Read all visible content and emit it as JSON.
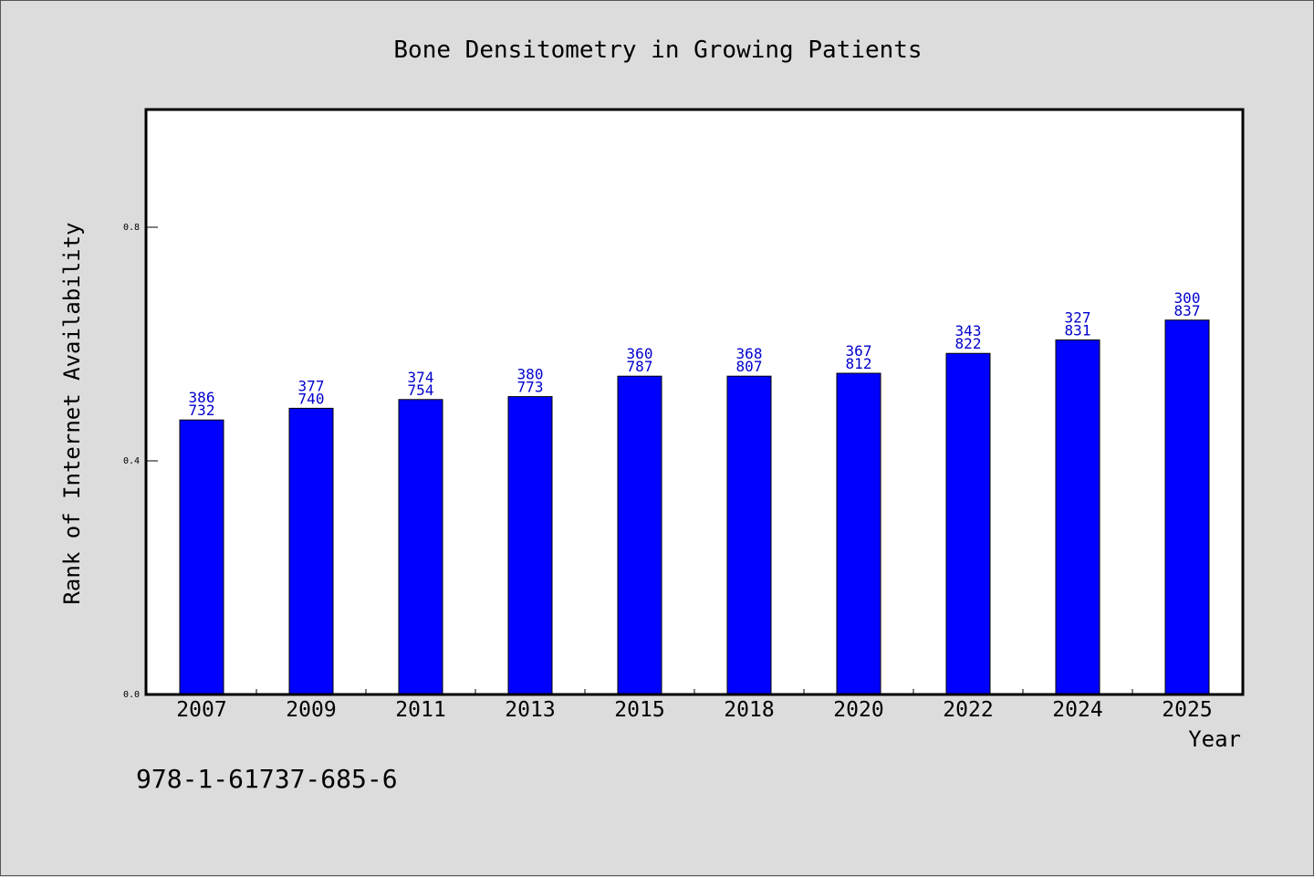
{
  "chart_data": {
    "type": "bar",
    "title": "Bone Densitometry in Growing Patients",
    "xlabel": "Year",
    "ylabel": "Rank of Internet Availability",
    "ylim": [
      0,
      1.0
    ],
    "yticks": [
      0.0,
      0.4,
      0.8
    ],
    "ytick_labels": [
      "0.0",
      "0.4",
      "0.8"
    ],
    "categories": [
      "2007",
      "2009",
      "2011",
      "2013",
      "2015",
      "2018",
      "2020",
      "2022",
      "2024",
      "2025"
    ],
    "values": [
      0.47,
      0.49,
      0.505,
      0.51,
      0.545,
      0.545,
      0.55,
      0.584,
      0.607,
      0.641
    ],
    "label_top": [
      "386",
      "377",
      "374",
      "380",
      "360",
      "368",
      "367",
      "343",
      "327",
      "300"
    ],
    "label_bottom": [
      "732",
      "740",
      "754",
      "773",
      "787",
      "807",
      "812",
      "822",
      "831",
      "837"
    ],
    "bar_color": "#0000ff",
    "label_color": "#0000cc",
    "grid": false,
    "legend": "none"
  },
  "footer": {
    "isbn": "978-1-61737-685-6"
  },
  "colors": {
    "background": "#dcdcdc",
    "plot_background": "#ffffff"
  }
}
